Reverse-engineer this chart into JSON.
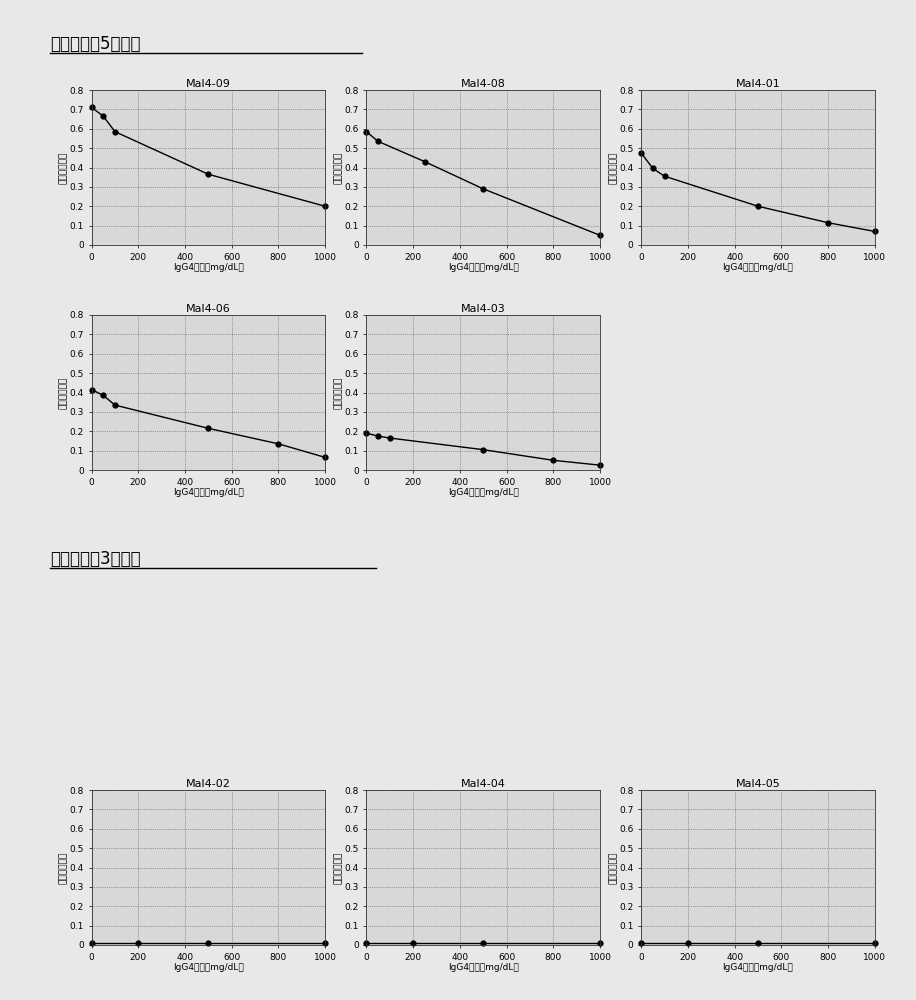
{
  "title_adaptive": "有适应性（5克隆）",
  "title_nonadaptive": "无适应性（3克隆）",
  "ylabel": "吸光度变化量",
  "xlabels": [
    "IgG4浓度（mg/dL）",
    "IgG4浓度（mg/dL）",
    "IgG4浓度（mg/dL）",
    "IgG4浓度（mg/dL）",
    "IgG4浓度（mg/dL）",
    "IgG4浓度（mg/dL）",
    "IgG4浓度（mg/dL）",
    "IgG4浓度（mg/dL）"
  ],
  "xlim": [
    0,
    1000
  ],
  "ylim": [
    0,
    0.8
  ],
  "xticks": [
    0,
    200,
    400,
    600,
    800,
    1000
  ],
  "yticks": [
    0,
    0.1,
    0.2,
    0.3,
    0.4,
    0.5,
    0.6,
    0.7,
    0.8
  ],
  "plots": [
    {
      "title": "Mal4-09",
      "x": [
        0,
        50,
        100,
        500,
        1000
      ],
      "y": [
        0.71,
        0.665,
        0.585,
        0.365,
        0.2
      ]
    },
    {
      "title": "Mal4-08",
      "x": [
        0,
        50,
        250,
        500,
        1000
      ],
      "y": [
        0.585,
        0.535,
        0.43,
        0.29,
        0.05
      ]
    },
    {
      "title": "Mal4-01",
      "x": [
        0,
        50,
        100,
        500,
        800,
        1000
      ],
      "y": [
        0.475,
        0.395,
        0.355,
        0.2,
        0.115,
        0.07
      ]
    },
    {
      "title": "Mal4-06",
      "x": [
        0,
        50,
        100,
        500,
        800,
        1000
      ],
      "y": [
        0.415,
        0.385,
        0.335,
        0.215,
        0.135,
        0.065
      ]
    },
    {
      "title": "Mal4-03",
      "x": [
        0,
        50,
        100,
        500,
        800,
        1000
      ],
      "y": [
        0.19,
        0.175,
        0.165,
        0.105,
        0.05,
        0.025
      ]
    },
    {
      "title": "Mal4-02",
      "x": [
        0,
        200,
        500,
        1000
      ],
      "y": [
        0.01,
        0.01,
        0.01,
        0.01
      ]
    },
    {
      "title": "Mal4-04",
      "x": [
        0,
        200,
        500,
        1000
      ],
      "y": [
        0.01,
        0.01,
        0.01,
        0.01
      ]
    },
    {
      "title": "Mal4-05",
      "x": [
        0,
        200,
        500,
        1000
      ],
      "y": [
        0.01,
        0.01,
        0.01,
        0.01
      ]
    }
  ],
  "bg_color": "#d8d8d8",
  "fig_bg_color": "#e8e8e8",
  "line_color": "#000000",
  "marker": "o",
  "markersize": 3.5,
  "linewidth": 1.0,
  "fontsize_title": 8,
  "fontsize_label": 6.5,
  "fontsize_tick": 6.5,
  "fontsize_section": 12
}
